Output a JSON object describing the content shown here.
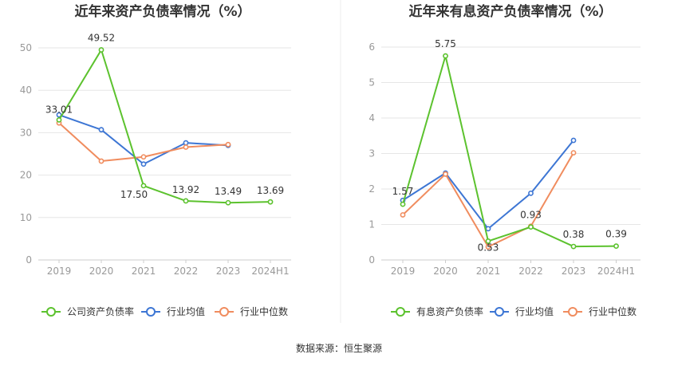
{
  "colors": {
    "company": "#5cc22e",
    "industry_avg": "#3d76d4",
    "industry_median": "#f08c5e",
    "grid": "#e6e6e6",
    "axis_text": "#999999",
    "title": "#333333",
    "divider": "#eeeeee"
  },
  "source_text": "数据来源：恒生聚源",
  "chart_data": [
    {
      "type": "line",
      "title": "近年来资产负债率情况（%）",
      "categories": [
        "2019",
        "2020",
        "2021",
        "2022",
        "2023",
        "2024H1"
      ],
      "ylim": [
        0,
        50
      ],
      "yticks": [
        0,
        10,
        20,
        30,
        40,
        50
      ],
      "grid": true,
      "legend_position": "bottom",
      "series": [
        {
          "name": "公司资产负债率",
          "key": "company",
          "values": [
            33.01,
            49.52,
            17.5,
            13.92,
            13.49,
            13.69
          ],
          "labels": [
            "33.01",
            "49.52",
            "17.50",
            "13.92",
            "13.49",
            "13.69"
          ]
        },
        {
          "name": "行业均值",
          "key": "industry_avg",
          "values": [
            34.2,
            30.7,
            22.6,
            27.6,
            27.0,
            null
          ]
        },
        {
          "name": "行业中位数",
          "key": "industry_median",
          "values": [
            32.3,
            23.3,
            24.3,
            26.6,
            27.2,
            null
          ]
        }
      ]
    },
    {
      "type": "line",
      "title": "近年来有息资产负债率情况（%）",
      "categories": [
        "2019",
        "2020",
        "2021",
        "2022",
        "2023",
        "2024H1"
      ],
      "ylim": [
        0,
        6
      ],
      "yticks": [
        0,
        1,
        2,
        3,
        4,
        5,
        6
      ],
      "grid": true,
      "legend_position": "bottom",
      "series": [
        {
          "name": "有息资产负债率",
          "key": "company",
          "values": [
            1.57,
            5.75,
            0.53,
            0.93,
            0.38,
            0.39
          ],
          "labels": [
            "1.57",
            "5.75",
            "0.53",
            "0.93",
            "0.38",
            "0.39"
          ]
        },
        {
          "name": "行业均值",
          "key": "industry_avg",
          "values": [
            1.68,
            2.45,
            0.88,
            1.88,
            3.37,
            null
          ]
        },
        {
          "name": "行业中位数",
          "key": "industry_median",
          "values": [
            1.27,
            2.42,
            0.37,
            0.95,
            3.02,
            null
          ]
        }
      ]
    }
  ]
}
